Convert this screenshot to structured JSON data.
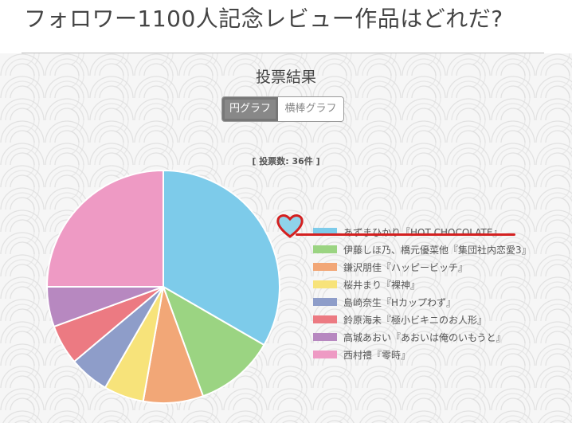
{
  "page": {
    "title": "フォロワー1100人記念レビュー作品はどれだ?"
  },
  "results": {
    "title": "投票結果",
    "tabs": [
      {
        "label": "円グラフ",
        "active": true
      },
      {
        "label": "横棒グラフ",
        "active": false
      }
    ],
    "vote_count_text": "[ 投票数: 36件 ]"
  },
  "chart_data": {
    "type": "pie",
    "title": "",
    "total_votes": 36,
    "legend_position": "right",
    "labels": [
      "あずまひかり『HOT CHOCOLATE』",
      "伊藤しほ乃、橋元優菜他『集団社内恋愛3』",
      "鎌沢朋佳『ハッピービッチ』",
      "桜井まり『裸神』",
      "島崎奈生『Hカップわず』",
      "鈴原海未『極小ビキニのお人形』",
      "高城あおい『あおいは俺のいもうと』",
      "西村禮『零時』"
    ],
    "values": [
      12,
      4,
      3,
      2,
      2,
      2,
      2,
      9
    ],
    "colors": [
      "#7dcbea",
      "#9bd482",
      "#f2a777",
      "#f7e37a",
      "#8e9dc9",
      "#ec7a82",
      "#b788c0",
      "#ee9ac4"
    ]
  },
  "annotations": {
    "heart_color": "#d42020",
    "heart_fill": "#8fd3ea",
    "underline_color": "#d42020"
  }
}
